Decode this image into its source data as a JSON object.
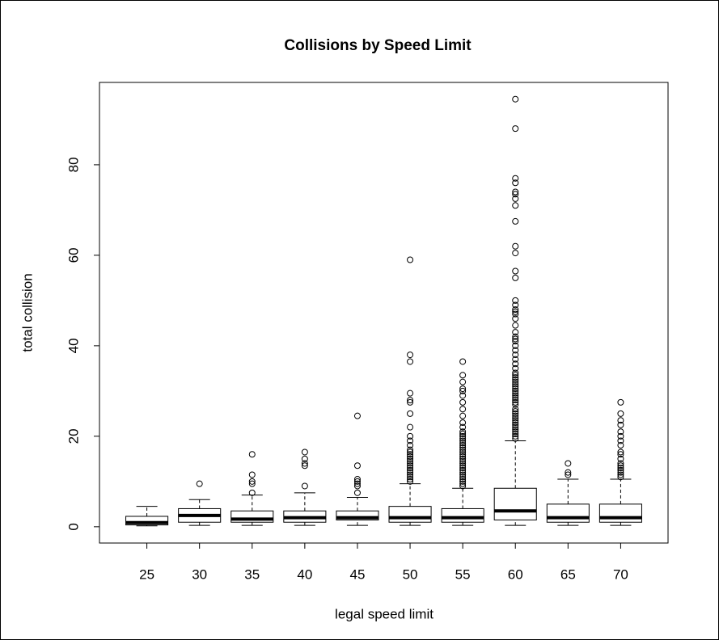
{
  "chart_data": {
    "type": "box",
    "title": "Collisions by Speed Limit",
    "x_label": "legal speed limit",
    "y_label": "total collision",
    "categories": [
      "25",
      "30",
      "35",
      "40",
      "45",
      "50",
      "55",
      "60",
      "65",
      "70"
    ],
    "ylim": [
      -3.6,
      98.2
    ],
    "yticks": [
      0,
      20,
      40,
      60,
      80
    ],
    "color": "#000000",
    "boxes": [
      {
        "min": 0.2,
        "q1": 0.4,
        "median": 0.9,
        "q3": 2.3,
        "max": 4.5,
        "outliers": []
      },
      {
        "min": 0.3,
        "q1": 1,
        "median": 2.5,
        "q3": 4,
        "max": 6,
        "outliers": [
          9.5
        ]
      },
      {
        "min": 0.3,
        "q1": 1,
        "median": 1.7,
        "q3": 3.5,
        "max": 7,
        "outliers": [
          7.5,
          9.5,
          10,
          11.5,
          16
        ]
      },
      {
        "min": 0.3,
        "q1": 1,
        "median": 2,
        "q3": 3.5,
        "max": 7.5,
        "outliers": [
          9,
          13.5,
          14,
          15,
          16.5
        ]
      },
      {
        "min": 0.3,
        "q1": 1.5,
        "median": 2,
        "q3": 3.5,
        "max": 6.5,
        "outliers": [
          7.5,
          9,
          9.5,
          10,
          10.5,
          13.5,
          24.5
        ]
      },
      {
        "min": 0.3,
        "q1": 1,
        "median": 2,
        "q3": 4.5,
        "max": 9.5,
        "outliers": [
          10,
          10.5,
          11,
          11.5,
          12,
          12.5,
          13,
          13.5,
          14,
          14.5,
          15,
          15.5,
          16,
          16.5,
          17,
          18,
          19,
          20,
          22,
          25,
          27.5,
          28,
          29.5,
          36.5,
          38,
          59
        ]
      },
      {
        "min": 0.3,
        "q1": 1,
        "median": 2,
        "q3": 4,
        "max": 8.5,
        "outliers": [
          9,
          9.5,
          10,
          10.5,
          11,
          11.5,
          12,
          12.5,
          13,
          13.5,
          14,
          14.5,
          15,
          15.5,
          16,
          16.5,
          17,
          17.5,
          18,
          18.5,
          19,
          19.5,
          20,
          20.5,
          21,
          22,
          23,
          24.5,
          26,
          27.5,
          29,
          30,
          30.5,
          32,
          33.5,
          36.5
        ]
      },
      {
        "min": 0.3,
        "q1": 1.5,
        "median": 3.5,
        "q3": 8.5,
        "max": 19,
        "outliers": [
          19.5,
          20,
          20.5,
          21,
          21.5,
          22,
          22.5,
          23,
          23.5,
          24,
          24.5,
          25,
          25.5,
          26,
          27,
          27.5,
          28,
          28.5,
          29,
          29.5,
          30,
          30.5,
          31,
          31.5,
          32,
          32.5,
          33,
          33.5,
          34,
          35,
          36,
          37,
          38,
          39,
          40,
          41,
          41.5,
          42,
          43,
          44.5,
          46,
          47,
          47.5,
          48,
          49,
          50,
          55,
          56.5,
          60.5,
          62,
          67.5,
          71,
          72.5,
          73.5,
          74,
          76,
          77,
          88,
          94.5
        ]
      },
      {
        "min": 0.3,
        "q1": 1,
        "median": 2,
        "q3": 5,
        "max": 10.5,
        "outliers": [
          11.5,
          12,
          14
        ]
      },
      {
        "min": 0.3,
        "q1": 1,
        "median": 2,
        "q3": 5,
        "max": 10.5,
        "outliers": [
          11,
          11.5,
          12,
          12.5,
          13,
          13.5,
          14,
          15,
          16,
          16.5,
          18,
          19,
          20,
          21,
          22.5,
          23.5,
          25,
          27.5
        ]
      }
    ]
  }
}
